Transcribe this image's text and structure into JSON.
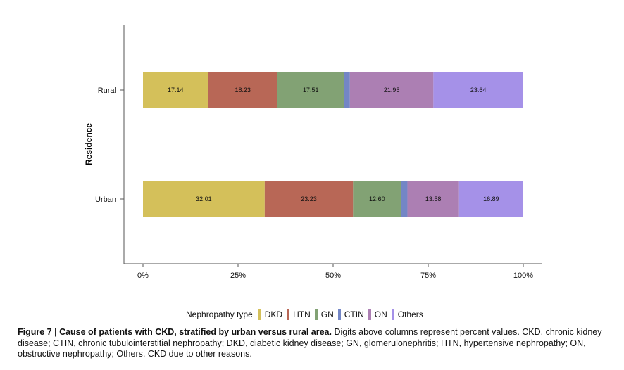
{
  "chart_data": {
    "type": "bar",
    "orientation": "horizontal",
    "stacked": true,
    "ylabel": "Residence",
    "xlabel": "",
    "xlim": [
      0,
      100
    ],
    "x_ticks": [
      0,
      25,
      50,
      75,
      100
    ],
    "x_tick_labels": [
      "0%",
      "25%",
      "50%",
      "75%",
      "100%"
    ],
    "categories": [
      "Rural",
      "Urban"
    ],
    "legend_title": "Nephropathy type",
    "legend_position": "bottom",
    "grid": false,
    "series": [
      {
        "name": "DKD",
        "color": "#d4c05a",
        "values": [
          17.14,
          32.01
        ],
        "labels": [
          "17.14",
          "32.01"
        ]
      },
      {
        "name": "HTN",
        "color": "#b86756",
        "values": [
          18.23,
          23.23
        ],
        "labels": [
          "18.23",
          "23.23"
        ]
      },
      {
        "name": "GN",
        "color": "#82a274",
        "values": [
          17.51,
          12.6
        ],
        "labels": [
          "17.51",
          "12.60"
        ]
      },
      {
        "name": "CTIN",
        "color": "#7386c6",
        "values": [
          1.53,
          1.69
        ],
        "labels": [
          "",
          ""
        ]
      },
      {
        "name": "ON",
        "color": "#ac7fb3",
        "values": [
          21.95,
          13.58
        ],
        "labels": [
          "21.95",
          "13.58"
        ]
      },
      {
        "name": "Others",
        "color": "#a591e8",
        "values": [
          23.64,
          16.89
        ],
        "labels": [
          "23.64",
          "16.89"
        ]
      }
    ]
  },
  "caption": {
    "bold": "Figure 7 | Cause of patients with CKD, stratified by urban versus rural area.",
    "text": " Digits above columns represent percent values. CKD, chronic kidney disease; CTIN, chronic tubulointerstitial nephropathy; DKD, diabetic kidney disease; GN, glomerulonephritis; HTN, hypertensive nephropathy; ON, obstructive nephropathy; Others, CKD due to other reasons."
  }
}
